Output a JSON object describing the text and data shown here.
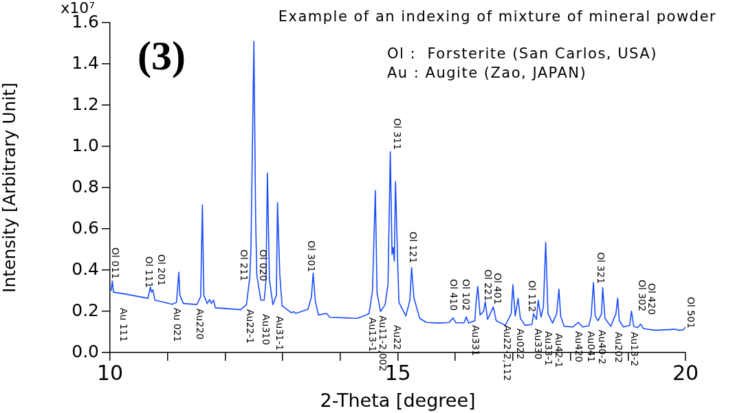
{
  "chart_data": {
    "type": "line",
    "title": "Example of an indexing of mixture of mineral powder",
    "xlabel": "2-Theta [degree]",
    "ylabel": "Intensity [Arbitrary Unit]",
    "xlim": [
      10,
      20
    ],
    "ylim": [
      0,
      1.6
    ],
    "xticks": [
      10,
      {
        "value": 11,
        "label": null
      },
      {
        "value": 12,
        "label": null
      },
      {
        "value": 13,
        "label": null
      },
      {
        "value": 14,
        "label": null
      },
      15,
      {
        "value": 16,
        "label": null
      },
      {
        "value": 17,
        "label": null
      },
      {
        "value": 18,
        "label": null
      },
      {
        "value": 19,
        "label": null
      },
      20
    ],
    "yticks": [
      {
        "value": 0,
        "label": "0.0"
      },
      0.2,
      0.4,
      0.6,
      0.8,
      {
        "value": 1,
        "label": "1.0"
      },
      1.2,
      1.4,
      1.6
    ],
    "grid": false,
    "legend": false,
    "marker": "none",
    "line_style": "solid",
    "x": [
      10.02,
      10.04,
      10.06,
      10.28,
      10.66,
      10.7,
      10.72,
      10.745,
      10.78,
      11.08,
      11.155,
      11.195,
      11.215,
      11.275,
      11.51,
      11.575,
      11.605,
      11.63,
      11.69,
      11.73,
      11.76,
      11.8,
      11.83,
      12.27,
      12.37,
      12.43,
      12.45,
      12.5,
      12.53,
      12.55,
      12.62,
      12.68,
      12.71,
      12.735,
      12.77,
      12.83,
      12.89,
      12.91,
      12.95,
      12.99,
      13.15,
      13.19,
      13.23,
      13.44,
      13.5,
      13.53,
      13.565,
      13.62,
      13.76,
      13.82,
      14.3,
      14.5,
      14.56,
      14.61,
      14.64,
      14.7,
      14.78,
      14.83,
      14.87,
      14.9,
      14.92,
      14.94,
      14.96,
      15,
      15.02,
      15.14,
      15.21,
      15.24,
      15.28,
      15.38,
      15.5,
      15.72,
      15.89,
      15.96,
      16.01,
      16.15,
      16.19,
      16.23,
      16.34,
      16.36,
      16.39,
      16.43,
      16.49,
      16.52,
      16.56,
      16.66,
      16.71,
      16.87,
      16.97,
      17,
      17.04,
      17.09,
      17.13,
      17.21,
      17.33,
      17.36,
      17.41,
      17.44,
      17.49,
      17.53,
      17.57,
      17.61,
      17.69,
      17.76,
      17.8,
      17.83,
      17.89,
      18.04,
      18.14,
      18.21,
      18.32,
      18.36,
      18.4,
      18.43,
      18.48,
      18.54,
      18.56,
      18.6,
      18.7,
      18.79,
      18.82,
      18.85,
      18.92,
      19.03,
      19.06,
      19.1,
      19.17,
      19.22,
      19.27,
      19.48,
      19.82,
      19.88,
      19.96,
      20
    ],
    "series": [
      {
        "color": "#1a4cff",
        "values": [
          0.299,
          0.347,
          0.293,
          0.283,
          0.263,
          0.318,
          0.293,
          0.304,
          0.254,
          0.234,
          0.243,
          0.39,
          0.277,
          0.238,
          0.233,
          0.271,
          0.716,
          0.277,
          0.238,
          0.257,
          0.238,
          0.253,
          0.217,
          0.208,
          0.232,
          0.367,
          0.521,
          1.51,
          0.654,
          0.377,
          0.254,
          0.254,
          0.354,
          0.871,
          0.354,
          0.232,
          0.277,
          0.727,
          0.377,
          0.227,
          0.193,
          0.198,
          0.19,
          0.21,
          0.271,
          0.386,
          0.254,
          0.182,
          0.19,
          0.171,
          0.166,
          0.188,
          0.299,
          0.786,
          0.288,
          0.199,
          0.232,
          0.332,
          0.974,
          0.477,
          0.51,
          0.443,
          0.829,
          0.421,
          0.243,
          0.177,
          0.254,
          0.412,
          0.266,
          0.166,
          0.146,
          0.143,
          0.146,
          0.168,
          0.144,
          0.144,
          0.173,
          0.143,
          0.154,
          0.243,
          0.321,
          0.182,
          0.199,
          0.246,
          0.16,
          0.221,
          0.154,
          0.132,
          0.188,
          0.329,
          0.177,
          0.262,
          0.166,
          0.132,
          0.136,
          0.188,
          0.16,
          0.254,
          0.171,
          0.221,
          0.534,
          0.188,
          0.143,
          0.188,
          0.307,
          0.177,
          0.127,
          0.124,
          0.146,
          0.124,
          0.13,
          0.177,
          0.34,
          0.177,
          0.154,
          0.188,
          0.316,
          0.166,
          0.127,
          0.188,
          0.263,
          0.154,
          0.124,
          0.132,
          0.201,
          0.127,
          0.121,
          0.138,
          0.116,
          0.108,
          0.113,
          0.108,
          0.11,
          0.124
        ]
      }
    ],
    "annotations": [
      "(3)",
      "Ol :  Forsterite (San Carlos, USA)",
      "Au : Augite (Zao, JAPAN)",
      "Ol 011",
      "Ol 111",
      "Ol 201",
      "Au 111",
      "Au 021",
      "Au220",
      "Ol 211",
      "Au22-1",
      "Ol 020",
      "Au310",
      "Au31-1",
      "Ol 301",
      "Au13-1",
      "Au11-2,002",
      "Au22",
      "Ol 311",
      "Ol 121",
      "Ol 410",
      "Ol 102",
      "Au331",
      "Ol 221",
      "Ol 401",
      "Au22-2,112",
      "Au022",
      "Ol 112",
      "Au330",
      "Au33-1",
      "Au42-1",
      "Au420",
      "Au041",
      "Ol 321",
      "Au40-2",
      "Au202",
      "Au13-2",
      "Ol 302",
      "Ol 420",
      "Ol 501",
      "x10⁷"
    ]
  }
}
